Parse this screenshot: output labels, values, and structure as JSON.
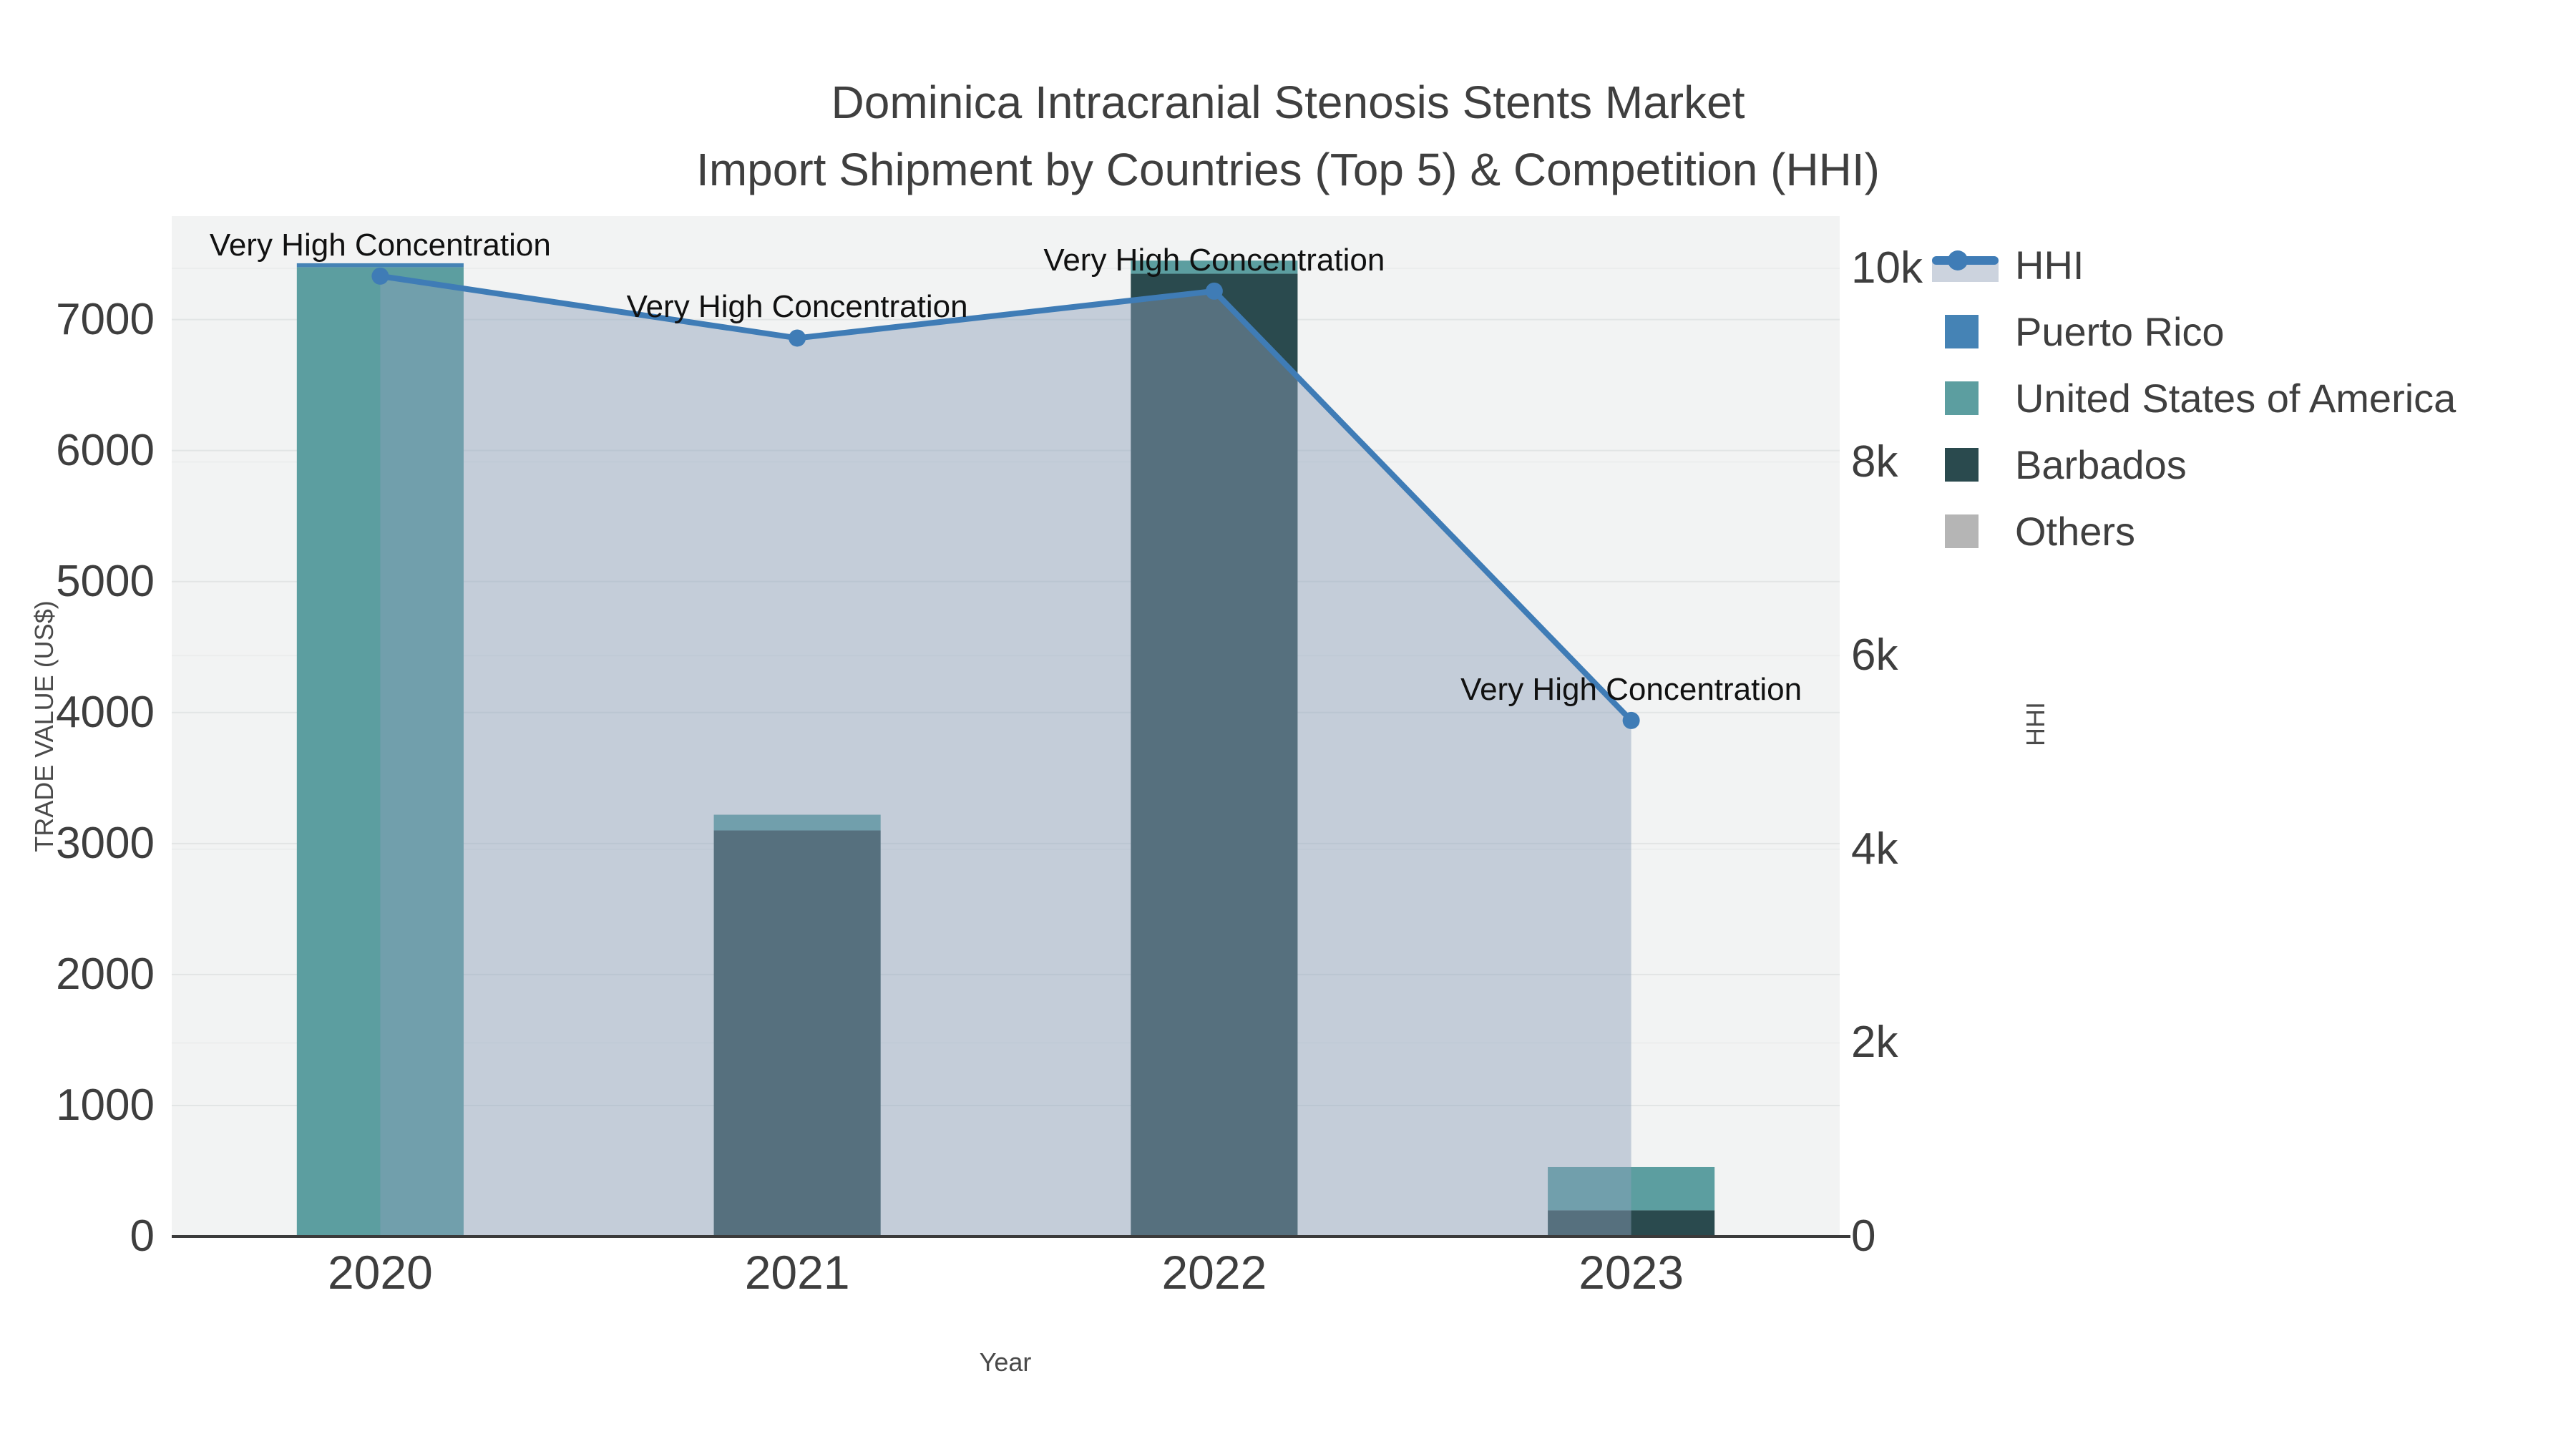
{
  "title": {
    "line1": "Dominica Intracranial Stenosis Stents Market",
    "line2": "Import Shipment by Countries (Top 5) & Competition (HHI)"
  },
  "axes": {
    "x": {
      "title": "Year",
      "categories": [
        "2020",
        "2021",
        "2022",
        "2023"
      ]
    },
    "y_left": {
      "title": "TRADE VALUE (US$)",
      "ticks": [
        {
          "label": "0",
          "value": 0
        },
        {
          "label": "1000",
          "value": 1000
        },
        {
          "label": "2000",
          "value": 2000
        },
        {
          "label": "3000",
          "value": 3000
        },
        {
          "label": "4000",
          "value": 4000
        },
        {
          "label": "5000",
          "value": 5000
        },
        {
          "label": "6000",
          "value": 6000
        },
        {
          "label": "7000",
          "value": 7000
        }
      ]
    },
    "y_right": {
      "title": "HHI",
      "ticks": [
        {
          "label": "0",
          "value": 0
        },
        {
          "label": "2k",
          "value": 2000
        },
        {
          "label": "4k",
          "value": 4000
        },
        {
          "label": "6k",
          "value": 6000
        },
        {
          "label": "8k",
          "value": 8000
        },
        {
          "label": "10k",
          "value": 10000
        }
      ]
    }
  },
  "legend": [
    {
      "label": "HHI",
      "swatch": "line"
    },
    {
      "label": "Puerto Rico",
      "swatch": "square"
    },
    {
      "label": "United States of America",
      "swatch": "square"
    },
    {
      "label": "Barbados",
      "swatch": "square"
    },
    {
      "label": "Others",
      "swatch": "square"
    }
  ],
  "chart_data": {
    "type": "bar+line",
    "title": "Dominica Intracranial Stenosis Stents Market Import Shipment by Countries (Top 5) & Competition (HHI)",
    "xlabel": "Year",
    "ylabel_left": "TRADE VALUE (US$)",
    "ylabel_right": "HHI",
    "categories": [
      "2020",
      "2021",
      "2022",
      "2023"
    ],
    "stack_order": [
      "Barbados",
      "United States of America",
      "Puerto Rico",
      "Others"
    ],
    "series": [
      {
        "name": "Puerto Rico",
        "type": "bar",
        "color": "#4583b5",
        "values": [
          30,
          0,
          0,
          0
        ]
      },
      {
        "name": "United States of America",
        "type": "bar",
        "color": "#5c9ea0",
        "values": [
          7400,
          120,
          100,
          330
        ]
      },
      {
        "name": "Barbados",
        "type": "bar",
        "color": "#2a4a4e",
        "values": [
          0,
          3100,
          7350,
          200
        ]
      },
      {
        "name": "Others",
        "type": "bar",
        "color": "#b5b5b5",
        "values": [
          0,
          0,
          0,
          0
        ]
      },
      {
        "name": "HHI",
        "type": "line",
        "axis": "right",
        "color": "#3f7cb6",
        "fill": "rgba(139,160,186,0.45)",
        "values": [
          9920,
          9280,
          9765,
          5330
        ]
      }
    ],
    "annotations": [
      "Very High Concentration",
      "Very High Concentration",
      "Very High Concentration",
      "Very High Concentration"
    ],
    "ylim_left": [
      0,
      7790
    ],
    "ylim_right": [
      0,
      10540
    ],
    "grid": true,
    "legend_position": "right",
    "plot_bg": "#f2f3f3",
    "gridline_color_left": "#e2e5e5",
    "gridline_color_right": "#ebeded"
  }
}
